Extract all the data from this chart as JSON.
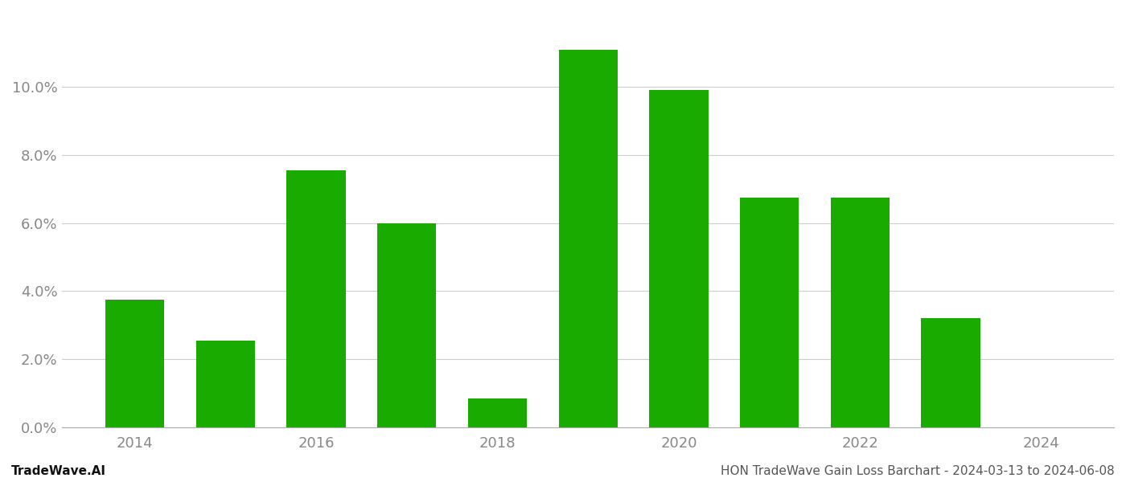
{
  "years": [
    2014,
    2015,
    2016,
    2017,
    2018,
    2019,
    2020,
    2021,
    2022,
    2023
  ],
  "values": [
    0.0375,
    0.0255,
    0.0755,
    0.06,
    0.0085,
    0.111,
    0.099,
    0.0675,
    0.0675,
    0.032
  ],
  "bar_color": "#1aab00",
  "background_color": "#ffffff",
  "footer_left": "TradeWave.AI",
  "footer_right": "HON TradeWave Gain Loss Barchart - 2024-03-13 to 2024-06-08",
  "ylim": [
    0,
    0.122
  ],
  "yticks": [
    0.0,
    0.02,
    0.04,
    0.06,
    0.08,
    0.1
  ],
  "xlim": [
    2013.2,
    2024.8
  ],
  "xticks": [
    2014,
    2016,
    2018,
    2020,
    2022,
    2024
  ],
  "grid_color": "#cccccc",
  "tick_color": "#888888",
  "footer_fontsize": 11,
  "bar_width": 0.65
}
